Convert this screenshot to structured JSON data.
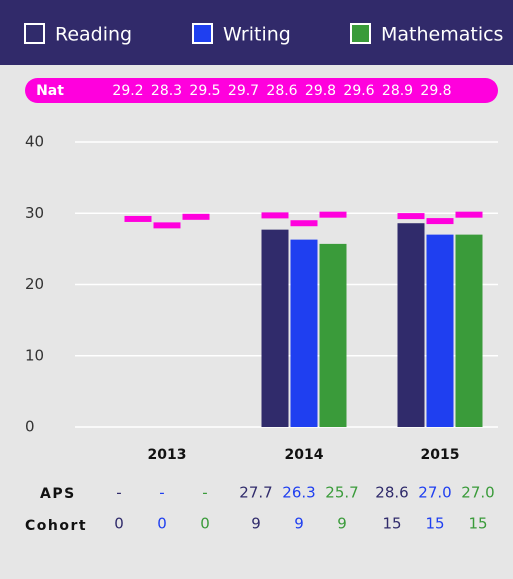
{
  "chart_data": {
    "type": "bar",
    "categories": [
      "2013",
      "2014",
      "2015"
    ],
    "series": [
      {
        "name": "Reading",
        "color": "#302b6b",
        "values": [
          null,
          27.7,
          28.6
        ],
        "value_labels": [
          "-",
          "27.7",
          "28.6"
        ],
        "nat": [
          29.2,
          29.7,
          29.6
        ],
        "cohort": [
          0,
          9,
          15
        ]
      },
      {
        "name": "Writing",
        "color": "#1f3ff0",
        "values": [
          null,
          26.3,
          27.0
        ],
        "value_labels": [
          "-",
          "26.3",
          "27.0"
        ],
        "nat": [
          28.3,
          28.6,
          28.9
        ],
        "cohort": [
          0,
          9,
          15
        ]
      },
      {
        "name": "Mathematics",
        "color": "#3a9b3a",
        "values": [
          null,
          25.7,
          27.0
        ],
        "value_labels": [
          "-",
          "25.7",
          "27.0"
        ],
        "nat": [
          29.5,
          29.8,
          29.8
        ],
        "cohort": [
          0,
          9,
          15
        ]
      }
    ],
    "nat_label": "Nat",
    "nat_color": "#ff00dd",
    "values_row_label": "APS",
    "cohort_row_label": "Cohort",
    "ylim": [
      0,
      40
    ],
    "yticks": [
      0,
      10,
      20,
      30,
      40
    ],
    "grid": true
  }
}
